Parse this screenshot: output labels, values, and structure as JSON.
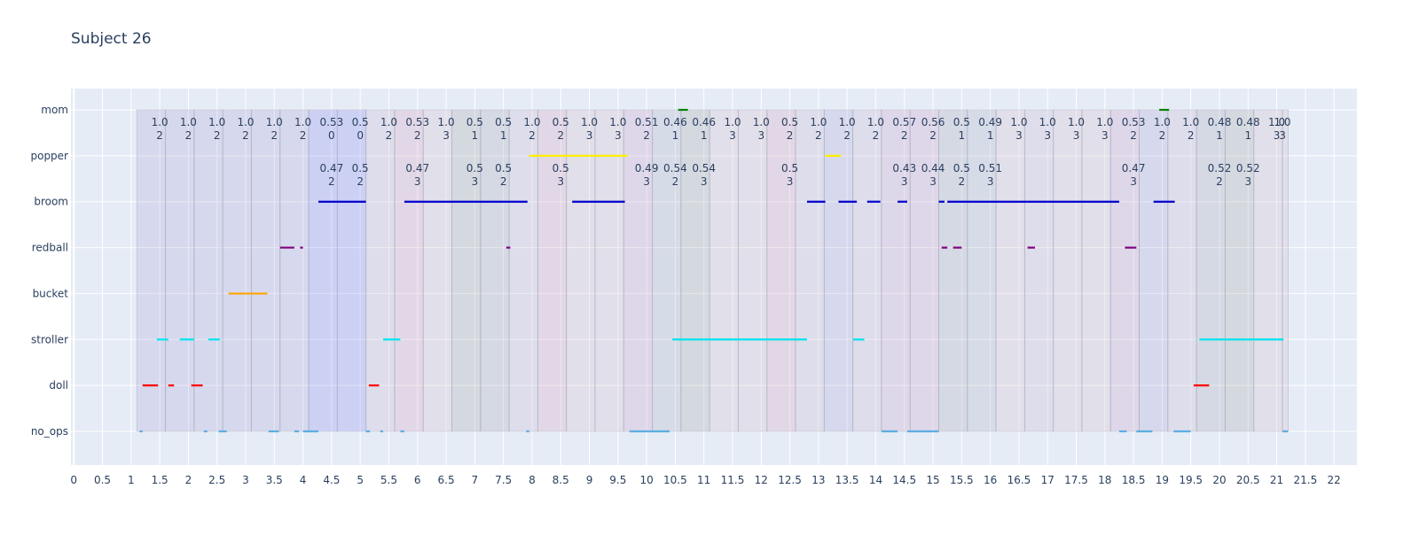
{
  "chart_data": {
    "type": "timeline",
    "title": "Subject 26",
    "xlabel": "",
    "ylabel": "",
    "xlim": [
      -0.05,
      22.4
    ],
    "x_ticks": [
      "0",
      "0.5",
      "1",
      "1.5",
      "2",
      "2.5",
      "3",
      "3.5",
      "4",
      "4.5",
      "5",
      "5.5",
      "6",
      "6.5",
      "7",
      "7.5",
      "8",
      "8.5",
      "9",
      "9.5",
      "10",
      "10.5",
      "11",
      "11.5",
      "12",
      "12.5",
      "13",
      "13.5",
      "14",
      "14.5",
      "15",
      "15.5",
      "16",
      "16.5",
      "17",
      "17.5",
      "18",
      "18.5",
      "19",
      "19.5",
      "20",
      "20.5",
      "21",
      "21.5",
      "22"
    ],
    "categories": [
      "no_ops",
      "doll",
      "stroller",
      "bucket",
      "redball",
      "broom",
      "popper",
      "mom"
    ],
    "colors": {
      "no_ops": "#5dade2",
      "doll": "#ff0000",
      "stroller": "#00e5ee",
      "bucket": "#ffa500",
      "redball": "#800080",
      "broom": "#0000cd",
      "popper": "#ffee00",
      "mom": "#008000"
    },
    "series": [
      {
        "category": "no_ops",
        "segments": [
          [
            1.15,
            1.2
          ],
          [
            2.27,
            2.33
          ],
          [
            2.53,
            2.67
          ],
          [
            3.4,
            3.58
          ],
          [
            3.85,
            3.93
          ],
          [
            4.0,
            4.27
          ],
          [
            5.1,
            5.17
          ],
          [
            5.35,
            5.4
          ],
          [
            5.7,
            5.77
          ],
          [
            7.9,
            7.95
          ],
          [
            9.7,
            10.4
          ],
          [
            14.1,
            14.38
          ],
          [
            14.55,
            15.1
          ],
          [
            18.25,
            18.38
          ],
          [
            18.55,
            18.83
          ],
          [
            19.2,
            19.5
          ],
          [
            21.1,
            21.2
          ]
        ]
      },
      {
        "category": "doll",
        "segments": [
          [
            1.2,
            1.47
          ],
          [
            1.65,
            1.75
          ],
          [
            2.05,
            2.25
          ],
          [
            5.15,
            5.33
          ],
          [
            19.55,
            19.82
          ]
        ]
      },
      {
        "category": "stroller",
        "segments": [
          [
            1.45,
            1.65
          ],
          [
            1.85,
            2.1
          ],
          [
            2.35,
            2.55
          ],
          [
            5.4,
            5.7
          ],
          [
            10.45,
            12.8
          ],
          [
            13.6,
            13.8
          ],
          [
            19.65,
            21.12
          ]
        ]
      },
      {
        "category": "bucket",
        "segments": [
          [
            2.7,
            3.38
          ]
        ]
      },
      {
        "category": "redball",
        "segments": [
          [
            3.6,
            3.85
          ],
          [
            3.95,
            4.0
          ],
          [
            7.55,
            7.62
          ],
          [
            15.15,
            15.25
          ],
          [
            15.35,
            15.5
          ],
          [
            16.65,
            16.78
          ],
          [
            18.35,
            18.55
          ]
        ]
      },
      {
        "category": "broom",
        "segments": [
          [
            4.27,
            5.1
          ],
          [
            5.77,
            7.6
          ],
          [
            7.6,
            7.92
          ],
          [
            8.7,
            9.62
          ],
          [
            12.8,
            13.12
          ],
          [
            13.35,
            13.67
          ],
          [
            13.85,
            14.08
          ],
          [
            14.38,
            14.55
          ],
          [
            15.1,
            15.2
          ],
          [
            15.25,
            16.65
          ],
          [
            16.65,
            18.25
          ],
          [
            18.85,
            19.22
          ]
        ]
      },
      {
        "category": "popper",
        "segments": [
          [
            7.95,
            9.67
          ],
          [
            13.12,
            13.4
          ]
        ]
      },
      {
        "category": "mom",
        "segments": [
          [
            10.55,
            10.72
          ],
          [
            18.95,
            19.12
          ]
        ]
      }
    ],
    "windows": [
      {
        "x0": 1.1,
        "x1": 1.6,
        "fill": "#b0a8d9"
      },
      {
        "x0": 1.6,
        "x1": 2.1,
        "fill": "#b0a8d9"
      },
      {
        "x0": 2.1,
        "x1": 2.6,
        "fill": "#b0a8d9"
      },
      {
        "x0": 2.6,
        "x1": 3.1,
        "fill": "#b0a8d9"
      },
      {
        "x0": 3.1,
        "x1": 3.6,
        "fill": "#b0a8d9"
      },
      {
        "x0": 3.6,
        "x1": 4.1,
        "fill": "#b0a8d9"
      },
      {
        "x0": 4.1,
        "x1": 4.6,
        "fill": "#8c8cf2"
      },
      {
        "x0": 4.6,
        "x1": 5.1,
        "fill": "#8c8cf2"
      },
      {
        "x0": 5.1,
        "x1": 5.6,
        "fill": "#c9b8cf"
      },
      {
        "x0": 5.6,
        "x1": 6.1,
        "fill": "#d9a3bf"
      },
      {
        "x0": 6.1,
        "x1": 6.6,
        "fill": "#d9bfc9"
      },
      {
        "x0": 6.6,
        "x1": 7.1,
        "fill": "#a9a9a9"
      },
      {
        "x0": 7.1,
        "x1": 7.6,
        "fill": "#a9a9b8"
      },
      {
        "x0": 7.6,
        "x1": 8.1,
        "fill": "#c9b8cf"
      },
      {
        "x0": 8.1,
        "x1": 8.6,
        "fill": "#d9a3bf"
      },
      {
        "x0": 8.6,
        "x1": 9.1,
        "fill": "#d9bfc9"
      },
      {
        "x0": 9.1,
        "x1": 9.6,
        "fill": "#d9bfc9"
      },
      {
        "x0": 9.6,
        "x1": 10.1,
        "fill": "#c9a3c9"
      },
      {
        "x0": 10.1,
        "x1": 10.6,
        "fill": "#b0b0c4"
      },
      {
        "x0": 10.6,
        "x1": 11.1,
        "fill": "#a9a9a9"
      },
      {
        "x0": 11.1,
        "x1": 11.6,
        "fill": "#d9bfc9"
      },
      {
        "x0": 11.6,
        "x1": 12.1,
        "fill": "#d9bfc9"
      },
      {
        "x0": 12.1,
        "x1": 12.6,
        "fill": "#d9a3bf"
      },
      {
        "x0": 12.6,
        "x1": 13.1,
        "fill": "#c9b8cf"
      },
      {
        "x0": 13.1,
        "x1": 13.6,
        "fill": "#b0a8d9"
      },
      {
        "x0": 13.6,
        "x1": 14.1,
        "fill": "#c9b8cf"
      },
      {
        "x0": 14.1,
        "x1": 14.6,
        "fill": "#c9a3c9"
      },
      {
        "x0": 14.6,
        "x1": 15.1,
        "fill": "#c9a3c9"
      },
      {
        "x0": 15.1,
        "x1": 15.6,
        "fill": "#a9a9b8"
      },
      {
        "x0": 15.6,
        "x1": 16.1,
        "fill": "#b0b0c4"
      },
      {
        "x0": 16.1,
        "x1": 16.6,
        "fill": "#d9bfc9"
      },
      {
        "x0": 16.6,
        "x1": 17.1,
        "fill": "#c9b8cf"
      },
      {
        "x0": 17.1,
        "x1": 17.6,
        "fill": "#d9bfc9"
      },
      {
        "x0": 17.6,
        "x1": 18.1,
        "fill": "#d9bfc9"
      },
      {
        "x0": 18.1,
        "x1": 18.6,
        "fill": "#c9a3c9"
      },
      {
        "x0": 18.6,
        "x1": 19.1,
        "fill": "#b0a8d9"
      },
      {
        "x0": 19.1,
        "x1": 19.6,
        "fill": "#c9b8cf"
      },
      {
        "x0": 19.6,
        "x1": 20.1,
        "fill": "#a9a9b8"
      },
      {
        "x0": 20.1,
        "x1": 20.6,
        "fill": "#a9a9a9"
      },
      {
        "x0": 20.6,
        "x1": 21.1,
        "fill": "#d9bfc9"
      },
      {
        "x0": 21.1,
        "x1": 21.2,
        "fill": "#d9bfc9"
      }
    ],
    "annotations": [
      {
        "x": 1.5,
        "row": "upper",
        "line1": "1.0",
        "line2": "2"
      },
      {
        "x": 2.0,
        "row": "upper",
        "line1": "1.0",
        "line2": "2"
      },
      {
        "x": 2.5,
        "row": "upper",
        "line1": "1.0",
        "line2": "2"
      },
      {
        "x": 3.0,
        "row": "upper",
        "line1": "1.0",
        "line2": "2"
      },
      {
        "x": 3.5,
        "row": "upper",
        "line1": "1.0",
        "line2": "2"
      },
      {
        "x": 4.0,
        "row": "upper",
        "line1": "1.0",
        "line2": "2"
      },
      {
        "x": 4.5,
        "row": "upper",
        "line1": "0.53",
        "line2": "0"
      },
      {
        "x": 5.0,
        "row": "upper",
        "line1": "0.5",
        "line2": "0"
      },
      {
        "x": 5.5,
        "row": "upper",
        "line1": "1.0",
        "line2": "2"
      },
      {
        "x": 6.0,
        "row": "upper",
        "line1": "0.53",
        "line2": "2"
      },
      {
        "x": 6.5,
        "row": "upper",
        "line1": "1.0",
        "line2": "3"
      },
      {
        "x": 7.0,
        "row": "upper",
        "line1": "0.5",
        "line2": "1"
      },
      {
        "x": 7.5,
        "row": "upper",
        "line1": "0.5",
        "line2": "1"
      },
      {
        "x": 8.0,
        "row": "upper",
        "line1": "1.0",
        "line2": "2"
      },
      {
        "x": 8.5,
        "row": "upper",
        "line1": "0.5",
        "line2": "2"
      },
      {
        "x": 9.0,
        "row": "upper",
        "line1": "1.0",
        "line2": "3"
      },
      {
        "x": 9.5,
        "row": "upper",
        "line1": "1.0",
        "line2": "3"
      },
      {
        "x": 10.0,
        "row": "upper",
        "line1": "0.51",
        "line2": "2"
      },
      {
        "x": 10.5,
        "row": "upper",
        "line1": "0.46",
        "line2": "1"
      },
      {
        "x": 11.0,
        "row": "upper",
        "line1": "0.46",
        "line2": "1"
      },
      {
        "x": 11.5,
        "row": "upper",
        "line1": "1.0",
        "line2": "3"
      },
      {
        "x": 12.0,
        "row": "upper",
        "line1": "1.0",
        "line2": "3"
      },
      {
        "x": 12.5,
        "row": "upper",
        "line1": "0.5",
        "line2": "2"
      },
      {
        "x": 13.0,
        "row": "upper",
        "line1": "1.0",
        "line2": "2"
      },
      {
        "x": 13.5,
        "row": "upper",
        "line1": "1.0",
        "line2": "2"
      },
      {
        "x": 14.0,
        "row": "upper",
        "line1": "1.0",
        "line2": "2"
      },
      {
        "x": 14.5,
        "row": "upper",
        "line1": "0.57",
        "line2": "2"
      },
      {
        "x": 15.0,
        "row": "upper",
        "line1": "0.56",
        "line2": "2"
      },
      {
        "x": 15.5,
        "row": "upper",
        "line1": "0.5",
        "line2": "1"
      },
      {
        "x": 16.0,
        "row": "upper",
        "line1": "0.49",
        "line2": "1"
      },
      {
        "x": 16.5,
        "row": "upper",
        "line1": "1.0",
        "line2": "3"
      },
      {
        "x": 17.0,
        "row": "upper",
        "line1": "1.0",
        "line2": "3"
      },
      {
        "x": 17.5,
        "row": "upper",
        "line1": "1.0",
        "line2": "3"
      },
      {
        "x": 18.0,
        "row": "upper",
        "line1": "1.0",
        "line2": "3"
      },
      {
        "x": 18.5,
        "row": "upper",
        "line1": "0.53",
        "line2": "2"
      },
      {
        "x": 19.0,
        "row": "upper",
        "line1": "1.0",
        "line2": "2"
      },
      {
        "x": 19.5,
        "row": "upper",
        "line1": "1.0",
        "line2": "2"
      },
      {
        "x": 20.0,
        "row": "upper",
        "line1": "0.48",
        "line2": "1"
      },
      {
        "x": 20.5,
        "row": "upper",
        "line1": "0.48",
        "line2": "1"
      },
      {
        "x": 21.0,
        "row": "upper",
        "line1": "1.0",
        "line2": "3"
      },
      {
        "x": 21.1,
        "row": "upper",
        "line1": "1.0",
        "line2": "3"
      },
      {
        "x": 4.5,
        "row": "lower",
        "line1": "0.47",
        "line2": "2"
      },
      {
        "x": 5.0,
        "row": "lower",
        "line1": "0.5",
        "line2": "2"
      },
      {
        "x": 6.0,
        "row": "lower",
        "line1": "0.47",
        "line2": "3"
      },
      {
        "x": 7.0,
        "row": "lower",
        "line1": "0.5",
        "line2": "3"
      },
      {
        "x": 7.5,
        "row": "lower",
        "line1": "0.5",
        "line2": "2"
      },
      {
        "x": 8.5,
        "row": "lower",
        "line1": "0.5",
        "line2": "3"
      },
      {
        "x": 10.0,
        "row": "lower",
        "line1": "0.49",
        "line2": "3"
      },
      {
        "x": 10.5,
        "row": "lower",
        "line1": "0.54",
        "line2": "2"
      },
      {
        "x": 11.0,
        "row": "lower",
        "line1": "0.54",
        "line2": "3"
      },
      {
        "x": 12.5,
        "row": "lower",
        "line1": "0.5",
        "line2": "3"
      },
      {
        "x": 14.5,
        "row": "lower",
        "line1": "0.43",
        "line2": "3"
      },
      {
        "x": 15.0,
        "row": "lower",
        "line1": "0.44",
        "line2": "3"
      },
      {
        "x": 15.5,
        "row": "lower",
        "line1": "0.5",
        "line2": "2"
      },
      {
        "x": 16.0,
        "row": "lower",
        "line1": "0.51",
        "line2": "3"
      },
      {
        "x": 18.5,
        "row": "lower",
        "line1": "0.47",
        "line2": "3"
      },
      {
        "x": 20.0,
        "row": "lower",
        "line1": "0.52",
        "line2": "2"
      },
      {
        "x": 20.5,
        "row": "lower",
        "line1": "0.52",
        "line2": "3"
      }
    ],
    "grid": true,
    "legend": "none"
  }
}
